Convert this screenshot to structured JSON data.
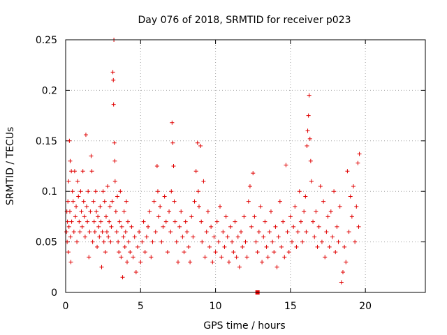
{
  "chart_data": {
    "type": "scatter",
    "title": "Day 076 of 2018, SRMTID for receiver p023",
    "xlabel": "GPS time / hours",
    "ylabel": "SRMTID / TECUs",
    "xlim": [
      0,
      24
    ],
    "ylim": [
      0,
      0.25
    ],
    "xticks": [
      0,
      5,
      10,
      15,
      20
    ],
    "xtick_labels": [
      "0",
      "5",
      "10",
      "15",
      "20"
    ],
    "yticks": [
      0,
      0.05,
      0.1,
      0.15,
      0.2,
      0.25
    ],
    "ytick_labels": [
      "0",
      "0.05",
      "0.1",
      "0.15",
      "0.2",
      "0.25"
    ],
    "grid": true,
    "marker": "plus",
    "color": "#e00000",
    "marker_square_at": [
      12.8,
      0.0
    ],
    "series": [
      {
        "name": "p023",
        "points": [
          [
            0.05,
            0.06
          ],
          [
            0.08,
            0.08
          ],
          [
            0.1,
            0.05
          ],
          [
            0.12,
            0.07
          ],
          [
            0.15,
            0.09
          ],
          [
            0.18,
            0.04
          ],
          [
            0.2,
            0.11
          ],
          [
            0.22,
            0.065
          ],
          [
            0.25,
            0.15
          ],
          [
            0.28,
            0.08
          ],
          [
            0.3,
            0.13
          ],
          [
            0.32,
            0.055
          ],
          [
            0.35,
            0.03
          ],
          [
            0.38,
            0.12
          ],
          [
            0.4,
            0.07
          ],
          [
            0.45,
            0.1
          ],
          [
            0.5,
            0.09
          ],
          [
            0.55,
            0.06
          ],
          [
            0.6,
            0.12
          ],
          [
            0.65,
            0.075
          ],
          [
            0.7,
            0.085
          ],
          [
            0.75,
            0.05
          ],
          [
            0.8,
            0.11
          ],
          [
            0.85,
            0.095
          ],
          [
            0.9,
            0.07
          ],
          [
            0.95,
            0.06
          ],
          [
            1.0,
            0.1
          ],
          [
            1.05,
            0.08
          ],
          [
            1.1,
            0.065
          ],
          [
            1.15,
            0.12
          ],
          [
            1.2,
            0.09
          ],
          [
            1.25,
            0.075
          ],
          [
            1.3,
            0.055
          ],
          [
            1.35,
            0.156
          ],
          [
            1.4,
            0.085
          ],
          [
            1.45,
            0.07
          ],
          [
            1.5,
            0.1
          ],
          [
            1.55,
            0.035
          ],
          [
            1.6,
            0.06
          ],
          [
            1.65,
            0.08
          ],
          [
            1.7,
            0.135
          ],
          [
            1.75,
            0.12
          ],
          [
            1.8,
            0.05
          ],
          [
            1.85,
            0.09
          ],
          [
            1.9,
            0.07
          ],
          [
            1.95,
            0.06
          ],
          [
            2.0,
            0.1
          ],
          [
            2.05,
            0.08
          ],
          [
            2.1,
            0.045
          ],
          [
            2.15,
            0.075
          ],
          [
            2.2,
            0.065
          ],
          [
            2.25,
            0.055
          ],
          [
            2.3,
            0.085
          ],
          [
            2.35,
            0.07
          ],
          [
            2.4,
            0.025
          ],
          [
            2.45,
            0.06
          ],
          [
            2.5,
            0.1
          ],
          [
            2.55,
            0.05
          ],
          [
            2.6,
            0.09
          ],
          [
            2.65,
            0.04
          ],
          [
            2.7,
            0.075
          ],
          [
            2.75,
            0.06
          ],
          [
            2.8,
            0.105
          ],
          [
            2.85,
            0.055
          ],
          [
            2.9,
            0.07
          ],
          [
            2.95,
            0.085
          ],
          [
            3.0,
            0.05
          ],
          [
            3.05,
            0.065
          ],
          [
            3.1,
            0.09
          ],
          [
            3.15,
            0.218
          ],
          [
            3.18,
            0.21
          ],
          [
            3.2,
            0.186
          ],
          [
            3.22,
            0.25
          ],
          [
            3.25,
            0.148
          ],
          [
            3.28,
            0.13
          ],
          [
            3.3,
            0.11
          ],
          [
            3.35,
            0.08
          ],
          [
            3.4,
            0.06
          ],
          [
            3.45,
            0.095
          ],
          [
            3.5,
            0.05
          ],
          [
            3.55,
            0.04
          ],
          [
            3.6,
            0.07
          ],
          [
            3.65,
            0.1
          ],
          [
            3.7,
            0.035
          ],
          [
            3.75,
            0.065
          ],
          [
            3.8,
            0.015
          ],
          [
            3.85,
            0.055
          ],
          [
            3.9,
            0.08
          ],
          [
            3.95,
            0.045
          ],
          [
            4.0,
            0.06
          ],
          [
            4.05,
            0.09
          ],
          [
            4.1,
            0.03
          ],
          [
            4.15,
            0.07
          ],
          [
            4.2,
            0.05
          ],
          [
            4.3,
            0.04
          ],
          [
            4.4,
            0.065
          ],
          [
            4.5,
            0.035
          ],
          [
            4.6,
            0.055
          ],
          [
            4.7,
            0.02
          ],
          [
            4.8,
            0.045
          ],
          [
            4.9,
            0.06
          ],
          [
            5.0,
            0.03
          ],
          [
            5.1,
            0.05
          ],
          [
            5.2,
            0.07
          ],
          [
            5.3,
            0.04
          ],
          [
            5.4,
            0.055
          ],
          [
            5.5,
            0.065
          ],
          [
            5.6,
            0.08
          ],
          [
            5.7,
            0.035
          ],
          [
            5.8,
            0.05
          ],
          [
            5.9,
            0.09
          ],
          [
            6.0,
            0.06
          ],
          [
            6.1,
            0.125
          ],
          [
            6.15,
            0.1
          ],
          [
            6.2,
            0.075
          ],
          [
            6.3,
            0.085
          ],
          [
            6.4,
            0.05
          ],
          [
            6.5,
            0.065
          ],
          [
            6.6,
            0.095
          ],
          [
            6.7,
            0.07
          ],
          [
            6.8,
            0.04
          ],
          [
            6.9,
            0.08
          ],
          [
            7.0,
            0.06
          ],
          [
            7.05,
            0.1
          ],
          [
            7.1,
            0.168
          ],
          [
            7.15,
            0.148
          ],
          [
            7.2,
            0.125
          ],
          [
            7.25,
            0.09
          ],
          [
            7.3,
            0.07
          ],
          [
            7.4,
            0.05
          ],
          [
            7.5,
            0.03
          ],
          [
            7.6,
            0.065
          ],
          [
            7.7,
            0.08
          ],
          [
            7.8,
            0.055
          ],
          [
            7.9,
            0.04
          ],
          [
            8.0,
            0.07
          ],
          [
            8.1,
            0.06
          ],
          [
            8.2,
            0.045
          ],
          [
            8.3,
            0.03
          ],
          [
            8.4,
            0.075
          ],
          [
            8.5,
            0.055
          ],
          [
            8.6,
            0.09
          ],
          [
            8.7,
            0.12
          ],
          [
            8.8,
            0.148
          ],
          [
            8.85,
            0.1
          ],
          [
            8.9,
            0.085
          ],
          [
            9.0,
            0.145
          ],
          [
            9.05,
            0.07
          ],
          [
            9.1,
            0.05
          ],
          [
            9.2,
            0.11
          ],
          [
            9.3,
            0.035
          ],
          [
            9.4,
            0.06
          ],
          [
            9.5,
            0.08
          ],
          [
            9.6,
            0.045
          ],
          [
            9.7,
            0.065
          ],
          [
            9.8,
            0.03
          ],
          [
            9.9,
            0.055
          ],
          [
            10.0,
            0.04
          ],
          [
            10.1,
            0.07
          ],
          [
            10.2,
            0.05
          ],
          [
            10.3,
            0.085
          ],
          [
            10.4,
            0.035
          ],
          [
            10.5,
            0.06
          ],
          [
            10.6,
            0.045
          ],
          [
            10.7,
            0.075
          ],
          [
            10.8,
            0.055
          ],
          [
            10.9,
            0.03
          ],
          [
            11.0,
            0.065
          ],
          [
            11.1,
            0.05
          ],
          [
            11.2,
            0.04
          ],
          [
            11.3,
            0.07
          ],
          [
            11.4,
            0.035
          ],
          [
            11.5,
            0.055
          ],
          [
            11.6,
            0.025
          ],
          [
            11.7,
            0.06
          ],
          [
            11.8,
            0.045
          ],
          [
            11.9,
            0.075
          ],
          [
            12.0,
            0.05
          ],
          [
            12.1,
            0.035
          ],
          [
            12.2,
            0.09
          ],
          [
            12.3,
            0.105
          ],
          [
            12.4,
            0.065
          ],
          [
            12.5,
            0.118
          ],
          [
            12.6,
            0.075
          ],
          [
            12.7,
            0.05
          ],
          [
            12.8,
            0.04
          ],
          [
            12.9,
            0.06
          ],
          [
            13.0,
            0.085
          ],
          [
            13.1,
            0.03
          ],
          [
            13.2,
            0.055
          ],
          [
            13.3,
            0.07
          ],
          [
            13.4,
            0.045
          ],
          [
            13.5,
            0.035
          ],
          [
            13.6,
            0.06
          ],
          [
            13.7,
            0.08
          ],
          [
            13.8,
            0.05
          ],
          [
            13.9,
            0.04
          ],
          [
            14.0,
            0.065
          ],
          [
            14.1,
            0.025
          ],
          [
            14.2,
            0.055
          ],
          [
            14.3,
            0.09
          ],
          [
            14.4,
            0.045
          ],
          [
            14.5,
            0.07
          ],
          [
            14.6,
            0.035
          ],
          [
            14.7,
            0.126
          ],
          [
            14.8,
            0.06
          ],
          [
            14.9,
            0.04
          ],
          [
            15.0,
            0.075
          ],
          [
            15.1,
            0.05
          ],
          [
            15.2,
            0.065
          ],
          [
            15.3,
            0.085
          ],
          [
            15.4,
            0.045
          ],
          [
            15.5,
            0.06
          ],
          [
            15.6,
            0.1
          ],
          [
            15.7,
            0.07
          ],
          [
            15.8,
            0.05
          ],
          [
            15.9,
            0.08
          ],
          [
            16.0,
            0.095
          ],
          [
            16.05,
            0.06
          ],
          [
            16.1,
            0.145
          ],
          [
            16.15,
            0.16
          ],
          [
            16.2,
            0.175
          ],
          [
            16.25,
            0.195
          ],
          [
            16.3,
            0.152
          ],
          [
            16.35,
            0.13
          ],
          [
            16.4,
            0.11
          ],
          [
            16.5,
            0.07
          ],
          [
            16.6,
            0.055
          ],
          [
            16.7,
            0.08
          ],
          [
            16.8,
            0.045
          ],
          [
            16.9,
            0.065
          ],
          [
            17.0,
            0.105
          ],
          [
            17.1,
            0.05
          ],
          [
            17.2,
            0.09
          ],
          [
            17.3,
            0.035
          ],
          [
            17.4,
            0.06
          ],
          [
            17.5,
            0.075
          ],
          [
            17.6,
            0.045
          ],
          [
            17.7,
            0.08
          ],
          [
            17.8,
            0.055
          ],
          [
            17.9,
            0.1
          ],
          [
            18.0,
            0.04
          ],
          [
            18.1,
            0.065
          ],
          [
            18.2,
            0.05
          ],
          [
            18.3,
            0.085
          ],
          [
            18.4,
            0.01
          ],
          [
            18.5,
            0.02
          ],
          [
            18.6,
            0.045
          ],
          [
            18.7,
            0.03
          ],
          [
            18.8,
            0.12
          ],
          [
            18.9,
            0.06
          ],
          [
            19.0,
            0.095
          ],
          [
            19.1,
            0.075
          ],
          [
            19.2,
            0.105
          ],
          [
            19.3,
            0.05
          ],
          [
            19.4,
            0.085
          ],
          [
            19.5,
            0.128
          ],
          [
            19.55,
            0.065
          ],
          [
            19.6,
            0.137
          ]
        ]
      }
    ]
  }
}
